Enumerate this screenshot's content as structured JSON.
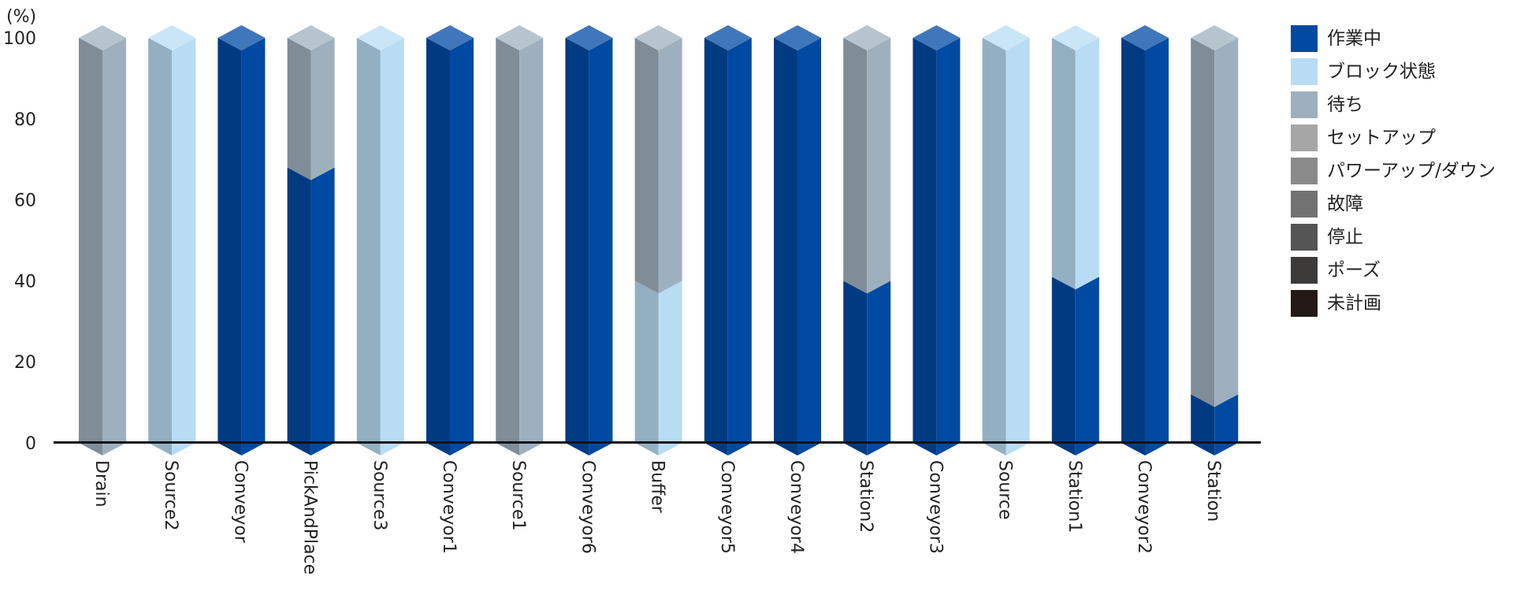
{
  "chart_data": {
    "type": "bar",
    "stacked": true,
    "style": "3d",
    "title": "",
    "xlabel": "",
    "ylabel": "",
    "y_unit_label": "(%)",
    "ylim": [
      0,
      100
    ],
    "yticks": [
      0,
      20,
      40,
      60,
      80,
      100
    ],
    "legend_position": "right",
    "categories": [
      "Drain",
      "Source2",
      "Conveyor",
      "PickAndPlace",
      "Source3",
      "Conveyor1",
      "Source1",
      "Conveyor6",
      "Buffer",
      "Conveyor5",
      "Conveyor4",
      "Station2",
      "Conveyor3",
      "Source",
      "Station1",
      "Conveyor2",
      "Station"
    ],
    "series": [
      {
        "name": "作業中",
        "color": "#004aa3",
        "values": [
          0,
          0,
          100,
          68,
          0,
          100,
          0,
          100,
          0,
          100,
          100,
          40,
          100,
          0,
          41,
          100,
          12
        ]
      },
      {
        "name": "ブロック状態",
        "color": "#b8dcf3",
        "values": [
          0,
          100,
          0,
          0,
          100,
          0,
          0,
          0,
          40,
          0,
          0,
          0,
          0,
          100,
          59,
          0,
          0
        ]
      },
      {
        "name": "待ち",
        "color": "#9eb0be",
        "values": [
          100,
          0,
          0,
          32,
          0,
          0,
          100,
          0,
          60,
          0,
          0,
          60,
          0,
          0,
          0,
          0,
          88
        ]
      },
      {
        "name": "セットアップ",
        "color": "#a6a6a6",
        "values": [
          0,
          0,
          0,
          0,
          0,
          0,
          0,
          0,
          0,
          0,
          0,
          0,
          0,
          0,
          0,
          0,
          0
        ]
      },
      {
        "name": "パワーアップ/ダウン",
        "color": "#8a8a8a",
        "values": [
          0,
          0,
          0,
          0,
          0,
          0,
          0,
          0,
          0,
          0,
          0,
          0,
          0,
          0,
          0,
          0,
          0
        ]
      },
      {
        "name": "故障",
        "color": "#727272",
        "values": [
          0,
          0,
          0,
          0,
          0,
          0,
          0,
          0,
          0,
          0,
          0,
          0,
          0,
          0,
          0,
          0,
          0
        ]
      },
      {
        "name": "停止",
        "color": "#555555",
        "values": [
          0,
          0,
          0,
          0,
          0,
          0,
          0,
          0,
          0,
          0,
          0,
          0,
          0,
          0,
          0,
          0,
          0
        ]
      },
      {
        "name": "ポーズ",
        "color": "#3d3a3a",
        "values": [
          0,
          0,
          0,
          0,
          0,
          0,
          0,
          0,
          0,
          0,
          0,
          0,
          0,
          0,
          0,
          0,
          0
        ]
      },
      {
        "name": "未計画",
        "color": "#231815",
        "values": [
          0,
          0,
          0,
          0,
          0,
          0,
          0,
          0,
          0,
          0,
          0,
          0,
          0,
          0,
          0,
          0,
          0
        ]
      }
    ]
  }
}
